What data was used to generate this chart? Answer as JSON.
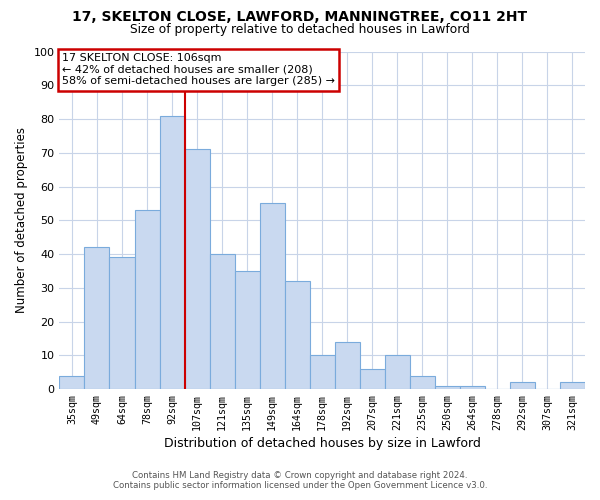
{
  "title": "17, SKELTON CLOSE, LAWFORD, MANNINGTREE, CO11 2HT",
  "subtitle": "Size of property relative to detached houses in Lawford",
  "xlabel": "Distribution of detached houses by size in Lawford",
  "ylabel": "Number of detached properties",
  "bar_labels": [
    "35sqm",
    "49sqm",
    "64sqm",
    "78sqm",
    "92sqm",
    "107sqm",
    "121sqm",
    "135sqm",
    "149sqm",
    "164sqm",
    "178sqm",
    "192sqm",
    "207sqm",
    "221sqm",
    "235sqm",
    "250sqm",
    "264sqm",
    "278sqm",
    "292sqm",
    "307sqm",
    "321sqm"
  ],
  "bar_values": [
    4,
    42,
    39,
    53,
    81,
    71,
    40,
    35,
    55,
    32,
    10,
    14,
    6,
    10,
    4,
    1,
    1,
    0,
    2,
    0,
    2
  ],
  "bar_color": "#c9d9f0",
  "bar_edge_color": "#7aabdc",
  "ylim": [
    0,
    100
  ],
  "vline_x_index": 4.5,
  "vline_color": "#cc0000",
  "annotation_title": "17 SKELTON CLOSE: 106sqm",
  "annotation_line1": "← 42% of detached houses are smaller (208)",
  "annotation_line2": "58% of semi-detached houses are larger (285) →",
  "annotation_box_color": "#ffffff",
  "annotation_box_edge": "#cc0000",
  "footer1": "Contains HM Land Registry data © Crown copyright and database right 2024.",
  "footer2": "Contains public sector information licensed under the Open Government Licence v3.0.",
  "bg_color": "#ffffff",
  "grid_color": "#c8d4e8"
}
